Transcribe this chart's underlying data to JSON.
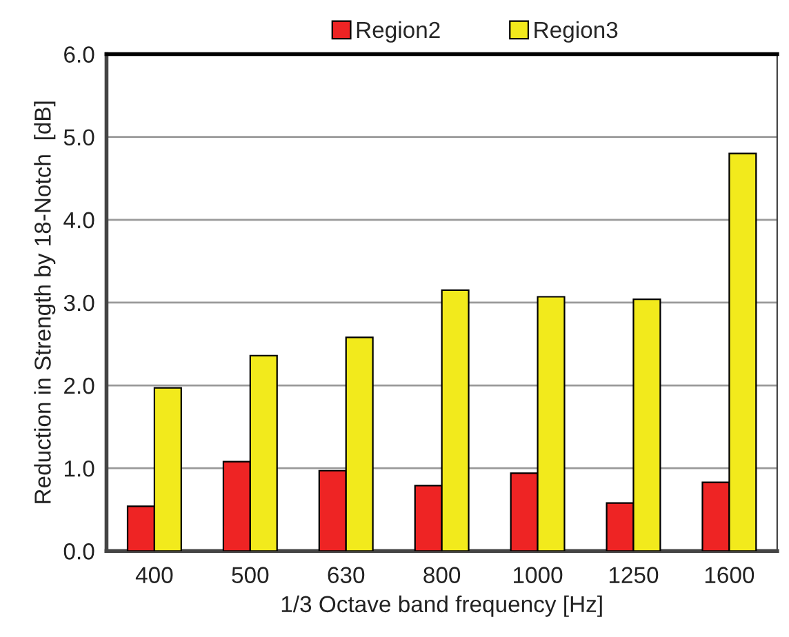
{
  "chart_data": {
    "type": "bar",
    "xlabel": "1/3 Octave band frequency [Hz]",
    "ylabel": "Reduction in Strength by 18-Notch  [dB]",
    "categories": [
      "400",
      "500",
      "630",
      "800",
      "1000",
      "1250",
      "1600"
    ],
    "series": [
      {
        "name": "Region2",
        "color": "#ee2424",
        "values": [
          0.54,
          1.08,
          0.97,
          0.79,
          0.94,
          0.58,
          0.83
        ]
      },
      {
        "name": "Region3",
        "color": "#f2ea1c",
        "values": [
          1.97,
          2.36,
          2.58,
          3.15,
          3.07,
          3.04,
          4.8
        ]
      }
    ],
    "ylim": [
      0,
      6
    ],
    "yticks": [
      {
        "value": 0,
        "label": "0.0"
      },
      {
        "value": 1,
        "label": "1.0"
      },
      {
        "value": 2,
        "label": "2.0"
      },
      {
        "value": 3,
        "label": "3.0"
      },
      {
        "value": 4,
        "label": "4.0"
      },
      {
        "value": 5,
        "label": "5.0"
      },
      {
        "value": 6,
        "label": "6.0"
      }
    ],
    "grid": "y",
    "legend": "top"
  }
}
